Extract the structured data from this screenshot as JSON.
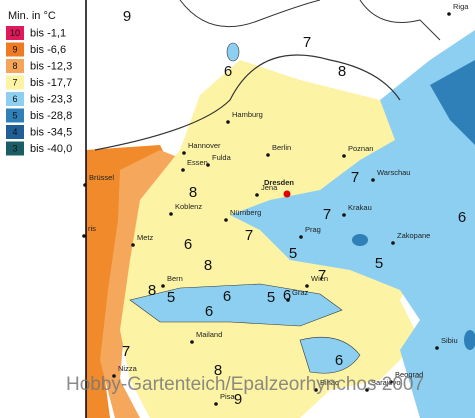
{
  "legend": {
    "title": "Min. in °C",
    "items": [
      {
        "zone": "10",
        "label": "bis -1,1"
      },
      {
        "zone": "9",
        "label": "bis -6,6"
      },
      {
        "zone": "8",
        "label": "bis -12,3"
      },
      {
        "zone": "7",
        "label": "bis -17,7"
      },
      {
        "zone": "6",
        "label": "bis -23,3"
      },
      {
        "zone": "5",
        "label": "bis -28,8"
      },
      {
        "zone": "4",
        "label": "bis -34,5"
      },
      {
        "zone": "3",
        "label": "bis -40,0"
      }
    ]
  },
  "cities": [
    "Hamburg",
    "Hannover",
    "Berlin",
    "Poznan",
    "Essen",
    "Dresden",
    "Jena",
    "Fulda",
    "Brüssel",
    "Koblenz",
    "Nürnberg",
    "Warschau",
    "Krakau",
    "Prag",
    "Metz",
    "ris",
    "Zakopane",
    "Bern",
    "Wien",
    "Graz",
    "Mailand",
    "Bihac",
    "Nizza",
    "Pisa",
    "Sarajevo",
    "Beograd",
    "Sibiu",
    "Riga"
  ],
  "zones": [
    "9",
    "7",
    "8",
    "6",
    "7",
    "8",
    "6",
    "7",
    "7",
    "6",
    "5",
    "8",
    "5",
    "7",
    "8",
    "5",
    "6",
    "5",
    "6",
    "6",
    "7",
    "8",
    "9",
    "6"
  ],
  "watermark": "Hobby-Gartenteich/Epalzeorhynchos 2007"
}
